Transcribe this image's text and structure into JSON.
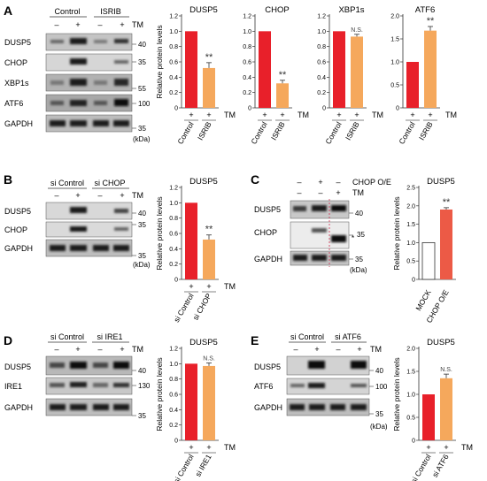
{
  "panels": {
    "A": {
      "label": "A",
      "groups": [
        "Control",
        "ISRIB"
      ],
      "tm_marks": [
        "–",
        "+",
        "–",
        "+"
      ],
      "tm_label": "TM",
      "proteins": [
        "DUSP5",
        "CHOP",
        "XBP1s",
        "ATF6",
        "GAPDH"
      ],
      "markers": [
        "40",
        "35",
        "55",
        "100",
        "35"
      ],
      "kda": "(kDa)"
    },
    "B": {
      "label": "B",
      "groups": [
        "si Control",
        "si CHOP"
      ],
      "tm_marks": [
        "–",
        "+",
        "–",
        "+"
      ],
      "tm_label": "TM",
      "proteins": [
        "DUSP5",
        "CHOP",
        "GAPDH"
      ],
      "markers": [
        "40",
        "35",
        "35"
      ],
      "kda": "(kDa)"
    },
    "C": {
      "label": "C",
      "rows": [
        {
          "label": "CHOP O/E",
          "marks": [
            "–",
            "+",
            "–"
          ]
        },
        {
          "label": "TM",
          "marks": [
            "–",
            "–",
            "+"
          ]
        }
      ],
      "proteins": [
        "DUSP5",
        "CHOP",
        "GAPDH"
      ],
      "markers": [
        "40",
        "35",
        "35"
      ],
      "star": "*",
      "kda": "(kDa)"
    },
    "D": {
      "label": "D",
      "groups": [
        "si Control",
        "si IRE1"
      ],
      "tm_marks": [
        "–",
        "+",
        "–",
        "+"
      ],
      "tm_label": "TM",
      "proteins": [
        "DUSP5",
        "IRE1",
        "GAPDH"
      ],
      "markers": [
        "40",
        "130",
        "35"
      ]
    },
    "E": {
      "label": "E",
      "groups": [
        "si Control",
        "si ATF6"
      ],
      "tm_marks": [
        "–",
        "+",
        "–",
        "+"
      ],
      "tm_label": "TM",
      "proteins": [
        "DUSP5",
        "ATF6",
        "GAPDH"
      ],
      "markers": [
        "40",
        "100",
        "35"
      ],
      "kda": "(kDa)"
    }
  },
  "colors": {
    "control_bar": "#e8202a",
    "treated_bar": "#f5a85c",
    "oe_bar": "#ec5a46",
    "mock_bar": "#ffffff"
  },
  "chart_data": [
    {
      "type": "bar",
      "panel": "A",
      "title": "DUSP5",
      "ylabel": "Relative protein levels",
      "ylim": [
        0,
        1.2
      ],
      "yticks": [
        "0",
        "0.2",
        "0.4",
        "0.6",
        "0.8",
        "1.0",
        "1.2"
      ],
      "tm_marks": [
        "+",
        "+"
      ],
      "tm_label": "TM",
      "categories": [
        "Control",
        "ISRIB"
      ],
      "values": [
        1.0,
        0.52
      ],
      "errors": [
        0,
        0.07
      ],
      "sig": [
        "",
        "**"
      ]
    },
    {
      "type": "bar",
      "panel": "A",
      "title": "CHOP",
      "ylabel": "",
      "ylim": [
        0,
        1.2
      ],
      "yticks": [
        "0",
        "0.2",
        "0.4",
        "0.6",
        "0.8",
        "1.0",
        "1.2"
      ],
      "tm_marks": [
        "+",
        "+"
      ],
      "tm_label": "TM",
      "categories": [
        "Control",
        "ISRIB"
      ],
      "values": [
        1.0,
        0.32
      ],
      "errors": [
        0,
        0.04
      ],
      "sig": [
        "",
        "**"
      ]
    },
    {
      "type": "bar",
      "panel": "A",
      "title": "XBP1s",
      "ylabel": "",
      "ylim": [
        0,
        1.2
      ],
      "yticks": [
        "0",
        "0.2",
        "0.4",
        "0.6",
        "0.8",
        "1.0",
        "1.2"
      ],
      "tm_marks": [
        "+",
        "+"
      ],
      "tm_label": "TM",
      "categories": [
        "Control",
        "ISRIB"
      ],
      "values": [
        1.0,
        0.93
      ],
      "errors": [
        0,
        0.03
      ],
      "sig": [
        "",
        "N.S."
      ]
    },
    {
      "type": "bar",
      "panel": "A",
      "title": "ATF6",
      "ylabel": "",
      "ylim": [
        0,
        2.0
      ],
      "yticks": [
        "0",
        "0.5",
        "1.0",
        "1.5",
        "2.0"
      ],
      "tm_marks": [
        "+",
        "+"
      ],
      "tm_label": "TM",
      "categories": [
        "Control",
        "ISRIB"
      ],
      "values": [
        1.0,
        1.68
      ],
      "errors": [
        0,
        0.09
      ],
      "sig": [
        "",
        "**"
      ]
    },
    {
      "type": "bar",
      "panel": "B",
      "title": "DUSP5",
      "ylabel": "Relative protein levels",
      "ylim": [
        0,
        1.2
      ],
      "yticks": [
        "0",
        "0.2",
        "0.4",
        "0.6",
        "0.8",
        "1.0",
        "1.2"
      ],
      "tm_marks": [
        "+",
        "+"
      ],
      "tm_label": "TM",
      "categories": [
        "si Control",
        "si CHOP"
      ],
      "values": [
        1.0,
        0.52
      ],
      "errors": [
        0,
        0.06
      ],
      "sig": [
        "",
        "**"
      ]
    },
    {
      "type": "bar",
      "panel": "C",
      "title": "DUSP5",
      "ylabel": "Relative protein levels",
      "ylim": [
        0,
        2.5
      ],
      "yticks": [
        "0",
        "0.5",
        "1.0",
        "1.5",
        "2.0",
        "2.5"
      ],
      "tm_marks": [],
      "tm_label": "",
      "categories": [
        "MOCK",
        "CHOP O/E"
      ],
      "values": [
        1.0,
        1.9
      ],
      "errors": [
        0,
        0.05
      ],
      "sig": [
        "",
        "**"
      ]
    },
    {
      "type": "bar",
      "panel": "D",
      "title": "DUSP5",
      "ylabel": "Relative protein levels",
      "ylim": [
        0,
        1.2
      ],
      "yticks": [
        "0",
        "0.2",
        "0.4",
        "0.6",
        "0.8",
        "1.0",
        "1.2"
      ],
      "tm_marks": [
        "+",
        "+"
      ],
      "tm_label": "TM",
      "categories": [
        "si Control",
        "si IRE1"
      ],
      "values": [
        1.0,
        0.97
      ],
      "errors": [
        0,
        0.04
      ],
      "sig": [
        "",
        "N.S."
      ]
    },
    {
      "type": "bar",
      "panel": "E",
      "title": "DUSP5",
      "ylabel": "Relative protein levels",
      "ylim": [
        0,
        2.0
      ],
      "yticks": [
        "0",
        "0.5",
        "1.0",
        "1.5",
        "2.0"
      ],
      "tm_marks": [
        "+",
        "+"
      ],
      "tm_label": "TM",
      "categories": [
        "si Control",
        "si ATF6"
      ],
      "values": [
        1.0,
        1.35
      ],
      "errors": [
        0,
        0.09
      ],
      "sig": [
        "",
        "N.S."
      ]
    }
  ]
}
